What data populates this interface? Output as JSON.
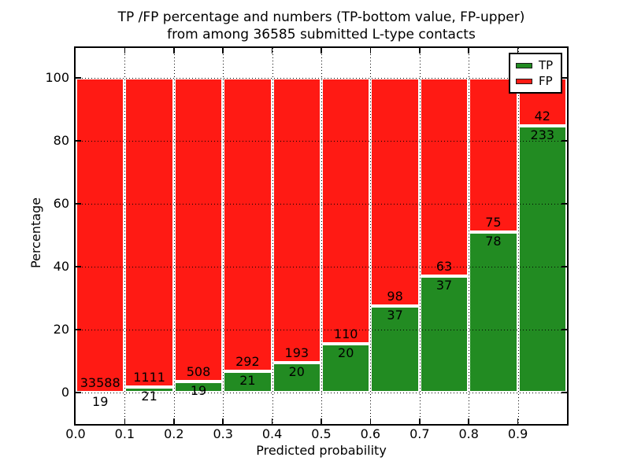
{
  "title": {
    "line1": "TP /FP percentage and numbers (TP-bottom value, FP-upper)",
    "line2": "from among 36585 submitted L-type contacts"
  },
  "axes": {
    "xlabel": "Predicted probability",
    "ylabel": "Percentage",
    "x_tick_labels": [
      "0.0",
      "0.1",
      "0.2",
      "0.3",
      "0.4",
      "0.5",
      "0.6",
      "0.7",
      "0.8",
      "0.9"
    ],
    "y_tick_labels": [
      "0",
      "20",
      "40",
      "60",
      "80",
      "100"
    ]
  },
  "legend": {
    "items": [
      {
        "label": "TP",
        "color": "#228b22"
      },
      {
        "label": "FP",
        "color": "#ff1a14"
      }
    ]
  },
  "chart_data": {
    "type": "bar",
    "stacked_to_100_percent": true,
    "bins": [
      "0.0-0.1",
      "0.1-0.2",
      "0.2-0.3",
      "0.3-0.4",
      "0.4-0.5",
      "0.5-0.6",
      "0.6-0.7",
      "0.7-0.8",
      "0.8-0.9",
      "0.9-1.0"
    ],
    "bin_left_edges": [
      0.0,
      0.1,
      0.2,
      0.3,
      0.4,
      0.5,
      0.6,
      0.7,
      0.8,
      0.9
    ],
    "bin_width": 0.1,
    "series": [
      {
        "name": "TP",
        "color": "#228b22",
        "counts": [
          19,
          21,
          19,
          21,
          20,
          20,
          37,
          37,
          78,
          233
        ]
      },
      {
        "name": "FP",
        "color": "#ff1a14",
        "counts": [
          33588,
          1111,
          508,
          292,
          193,
          110,
          98,
          63,
          75,
          42
        ]
      }
    ],
    "tp_percent_of_bin": [
      0.06,
      1.86,
      3.61,
      6.71,
      9.39,
      15.38,
      27.41,
      37.0,
      50.98,
      84.73
    ],
    "total_contacts": 36585,
    "title": "TP /FP percentage and numbers (TP-bottom value, FP-upper) from among 36585 submitted L-type contacts",
    "xlabel": "Predicted probability",
    "ylabel": "Percentage",
    "xlim": [
      0.0,
      1.0
    ],
    "ylim": [
      -10,
      110
    ],
    "grid": "dotted",
    "legend_position": "upper-right"
  }
}
